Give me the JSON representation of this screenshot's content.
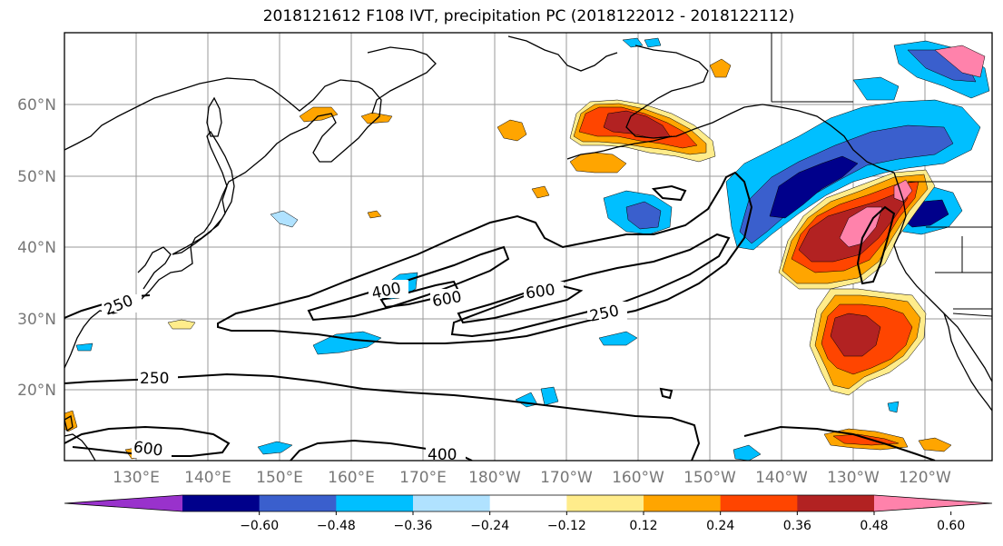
{
  "title": "2018121612 F108 IVT, precipitation PC (2018122012 - 2018122112)",
  "lat_labels": [
    "60°N",
    "50°N",
    "40°N",
    "30°N",
    "20°N"
  ],
  "lon_labels": [
    "130°E",
    "140°E",
    "150°E",
    "160°E",
    "170°E",
    "180°W",
    "170°W",
    "160°W",
    "150°W",
    "140°W",
    "130°W",
    "120°W"
  ],
  "contour_labels": {
    "c250_west": "250",
    "c400_mid": "400",
    "c600_mid": "600",
    "c600_east": "600",
    "c250_east": "250",
    "c250_south": "250",
    "c600_south": "600",
    "c400_south": "400"
  },
  "colorbar": {
    "colors": [
      "#9932cc",
      "#00008b",
      "#3a5fcd",
      "#00bfff",
      "#b0e2ff",
      "#ffffff",
      "#ffec8b",
      "#ffa500",
      "#ff4500",
      "#b22222",
      "#ff82ab"
    ],
    "ticks": [
      "−0.60",
      "−0.48",
      "−0.36",
      "−0.24",
      "−0.12",
      "0.12",
      "0.24",
      "0.36",
      "0.48",
      "0.60"
    ]
  }
}
